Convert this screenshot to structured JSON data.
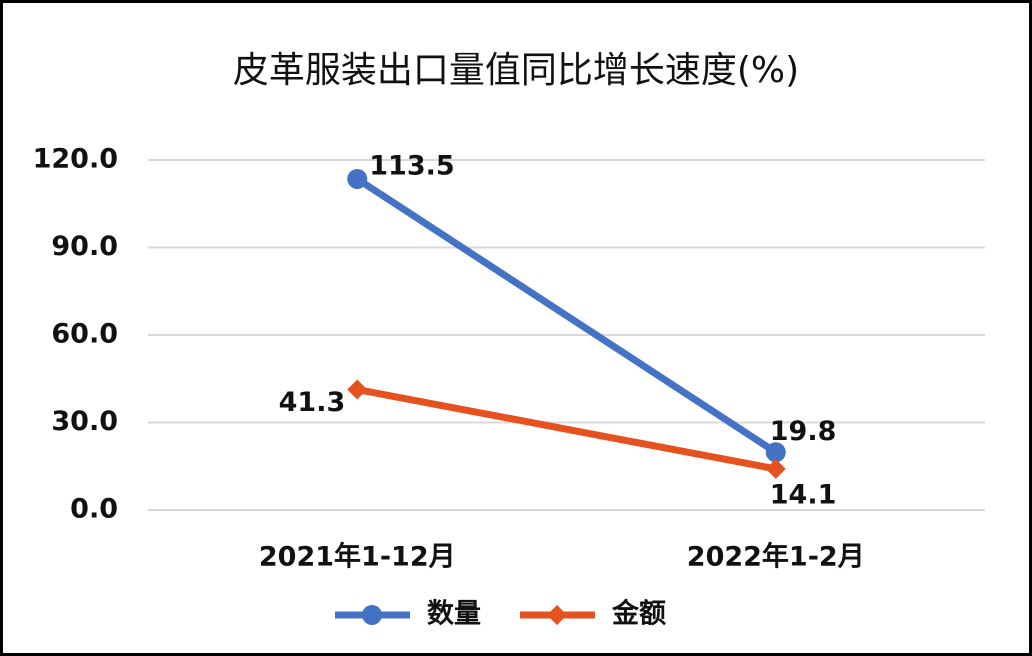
{
  "chart_data": {
    "type": "line",
    "title": "皮革服装出口量值同比增长速度(%)",
    "categories": [
      "2021年1-12月",
      "2022年1-2月"
    ],
    "series": [
      {
        "name": "数量",
        "color": "#4472c4",
        "marker": "circle",
        "values": [
          113.5,
          19.8
        ]
      },
      {
        "name": "金额",
        "color": "#e6521f",
        "marker": "diamond",
        "values": [
          41.3,
          14.1
        ]
      }
    ],
    "ylim": [
      0,
      120
    ],
    "yticks": [
      {
        "value": 0,
        "label": "0.0"
      },
      {
        "value": 30,
        "label": "30.0"
      },
      {
        "value": 60,
        "label": "60.0"
      },
      {
        "value": 90,
        "label": "90.0"
      },
      {
        "value": 120,
        "label": "120.0"
      }
    ],
    "grid": true,
    "legend": "bottom"
  }
}
